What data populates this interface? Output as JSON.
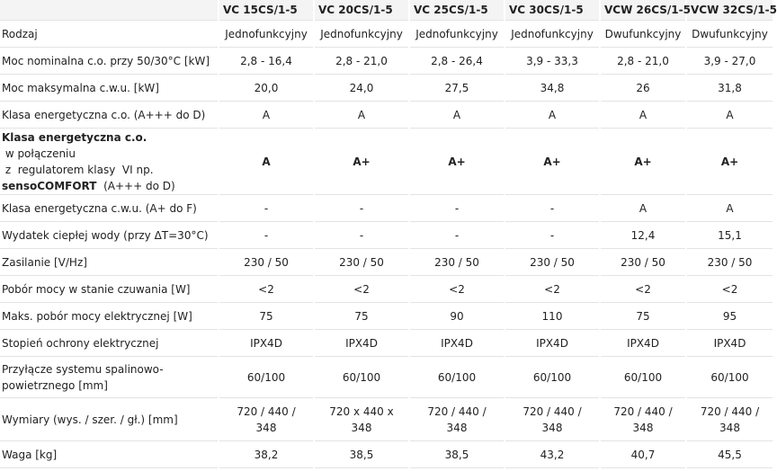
{
  "columns": [
    "",
    "VC 15CS/1-5",
    "VC 20CS/1-5",
    "VC 25CS/1-5",
    "VC 30CS/1-5",
    "VCW 26CS/1-5",
    "VCW 32CS/1-5"
  ],
  "rows": [
    {
      "label": "Rodzaj",
      "values": [
        "Jednofunkcyjny",
        "Jednofunkcyjny",
        "Jednofunkcyjny",
        "Jednofunkcyjny",
        "Dwufunkcyjny",
        "Dwufunkcyjny"
      ]
    },
    {
      "label": "Moc nominalna c.o. przy 50/30°C [kW]",
      "values": [
        "2,8 - 16,4",
        "2,8 - 21,0",
        "2,8 - 26,4",
        "3,9 - 33,3",
        "2,8 - 21,0",
        "3,9 - 27,0"
      ]
    },
    {
      "label": "Moc maksymalna c.w.u. [kW]",
      "values": [
        "20,0",
        "24,0",
        "27,5",
        "34,8",
        "26",
        "31,8"
      ]
    },
    {
      "label": "Klasa energetyczna c.o. (A+++ do D)",
      "values": [
        "A",
        "A",
        "A",
        "A",
        "A",
        "A"
      ]
    },
    {
      "label_bold_1": "Klasa energetyczna c.o.",
      "label_1": " w połączeniu",
      "label_2": " z  regulatorem klasy  VI np.",
      "label_bold_3": "sensoCOMFORT",
      "label_3": "  (A+++ do D)",
      "values": [
        "A",
        "A+",
        "A+",
        "A+",
        "A+",
        "A+"
      ]
    },
    {
      "label": "Klasa energetyczna c.w.u. (A+ do F)",
      "values": [
        "-",
        "-",
        "-",
        "-",
        "A",
        "A"
      ]
    },
    {
      "label": "Wydatek ciepłej wody (przy ΔT=30°C)",
      "values": [
        "-",
        "-",
        "-",
        "-",
        "12,4",
        "15,1"
      ]
    },
    {
      "label": "Zasilanie [V/Hz]",
      "values": [
        "230 / 50",
        "230 / 50",
        "230 / 50",
        "230 / 50",
        "230 / 50",
        "230 / 50"
      ]
    },
    {
      "label": "Pobór mocy w stanie czuwania [W]",
      "values": [
        "<2",
        "<2",
        "<2",
        "<2",
        "<2",
        "<2"
      ]
    },
    {
      "label": "Maks. pobór mocy elektrycznej [W]",
      "values": [
        "75",
        "75",
        "90",
        "110",
        "75",
        "95"
      ]
    },
    {
      "label": "Stopień ochrony elektrycznej",
      "values": [
        "IPX4D",
        "IPX4D",
        "IPX4D",
        "IPX4D",
        "IPX4D",
        "IPX4D"
      ]
    },
    {
      "label_1": "Przyłącze systemu spalinowo-",
      "label_2": "powietrznego [mm]",
      "values": [
        "60/100",
        "60/100",
        "60/100",
        "60/100",
        "60/100",
        "60/100"
      ]
    },
    {
      "label": "Wymiary (wys. / szer. / gł.) [mm]",
      "values": [
        [
          "720 / 440 /",
          "348"
        ],
        [
          "720 x 440 x",
          "348"
        ],
        [
          "720 / 440 /",
          "348"
        ],
        [
          "720 / 440 /",
          "348"
        ],
        [
          "720 / 440 /",
          "348"
        ],
        [
          "720 / 440 /",
          "348"
        ]
      ]
    },
    {
      "label": "Waga [kg]",
      "values": [
        "38,2",
        "38,5",
        "38,5",
        "43,2",
        "40,7",
        "45,5"
      ]
    }
  ]
}
